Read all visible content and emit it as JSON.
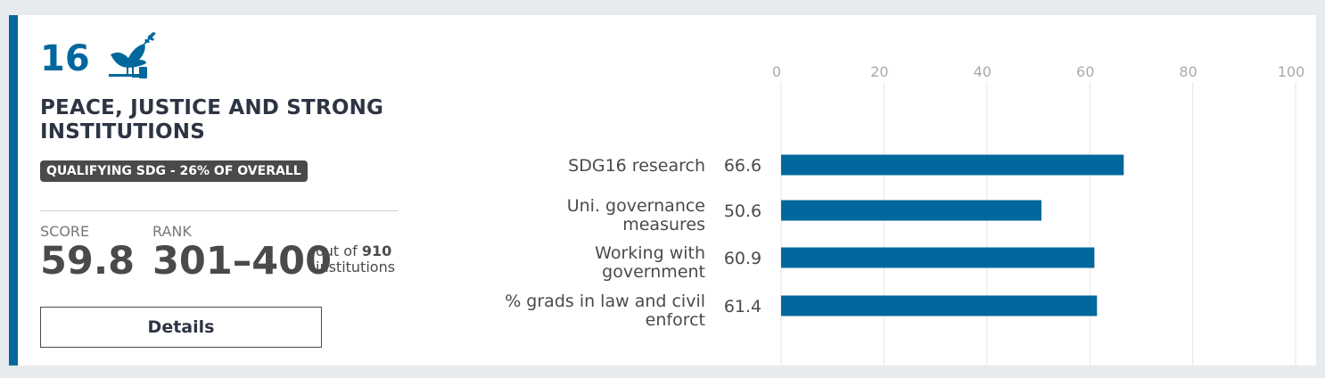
{
  "goal": {
    "number": "16",
    "icon": "dove-gavel-icon",
    "title": "PEACE, JUSTICE AND STRONG INSTITUTIONS",
    "badge": "QUALIFYING SDG - 26% OF OVERALL",
    "accent_color": "#00689d"
  },
  "score": {
    "label": "SCORE",
    "value": "59.8"
  },
  "rank": {
    "label": "RANK",
    "value": "301–400",
    "out_of_prefix": "out of",
    "total": "910",
    "suffix": "institutions"
  },
  "details_button": {
    "label": "Details"
  },
  "chart_data": {
    "type": "bar",
    "orientation": "horizontal",
    "categories": [
      [
        "SDG16 research"
      ],
      [
        "Uni. governance",
        "measures"
      ],
      [
        "Working with",
        "government"
      ],
      [
        "% grads in law and civil",
        "enforct"
      ]
    ],
    "values": [
      66.6,
      50.6,
      60.9,
      61.4
    ],
    "value_labels": [
      "66.6",
      "50.6",
      "60.9",
      "61.4"
    ],
    "xlim": [
      0,
      100
    ],
    "ticks": [
      0,
      20,
      40,
      60,
      80,
      100
    ],
    "tick_labels": [
      "0",
      "20",
      "40",
      "60",
      "80",
      "100"
    ],
    "axis_position": "top",
    "grid": true,
    "bar_color": "#00689d",
    "title": "",
    "xlabel": "",
    "ylabel": ""
  }
}
